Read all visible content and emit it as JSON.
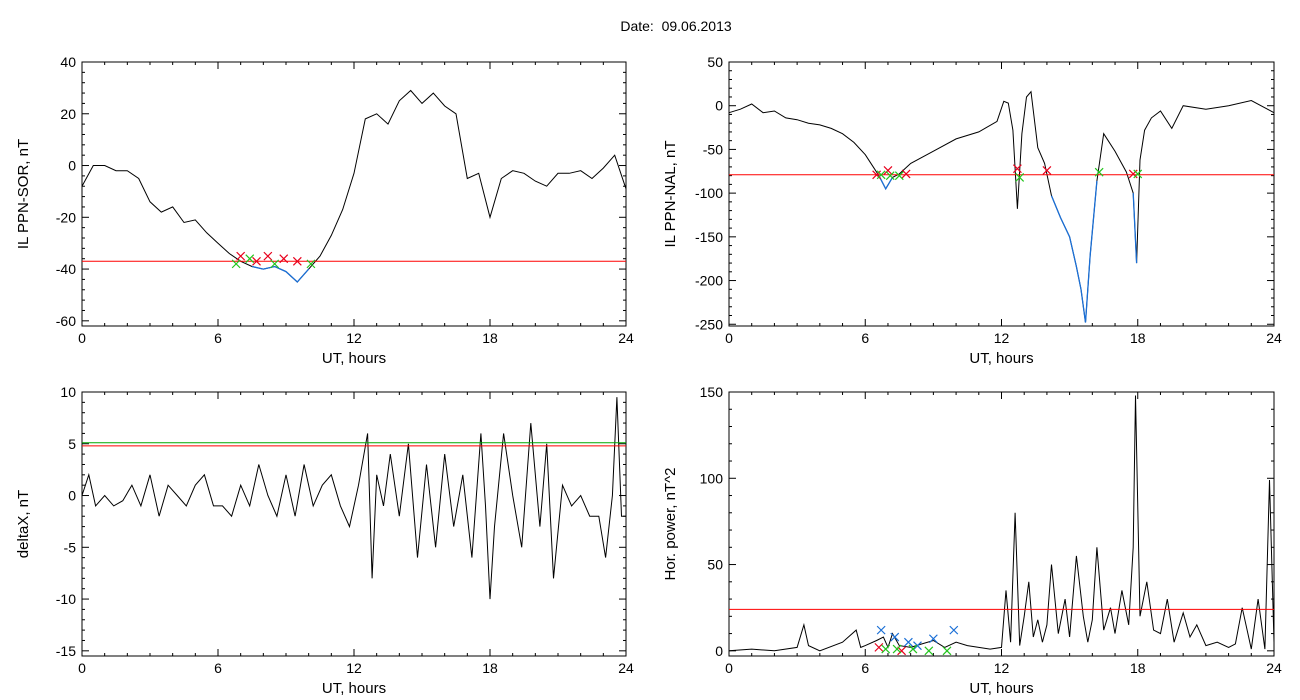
{
  "title": {
    "label": "Date:",
    "value": "09.06.2013"
  },
  "colors": {
    "trace": "#000000",
    "threshold": "#ff0000",
    "threshold_alt": "#00aa00",
    "highlight": "#1a6fd6",
    "marker_red": "#e8001c",
    "marker_green": "#22c41c",
    "marker_blue": "#1a6fd6"
  },
  "chart_data": [
    {
      "id": "sor",
      "type": "line",
      "xlabel": "UT, hours",
      "ylabel": "IL PPN-SOR, nT",
      "xlim": [
        0,
        24
      ],
      "ylim": [
        -62,
        40
      ],
      "xticks": [
        0,
        6,
        12,
        18,
        24
      ],
      "yticks": [
        -60,
        -40,
        -20,
        0,
        20,
        40
      ],
      "threshold": [
        -37
      ],
      "series": [
        {
          "x": [
            0,
            0.5,
            1,
            1.5,
            2,
            2.5,
            3,
            3.5,
            4,
            4.5,
            5,
            5.5,
            6,
            6.5,
            7,
            7.5,
            8,
            8.5,
            9,
            9.5,
            10,
            10.5,
            11,
            11.5,
            12,
            12.5,
            13,
            13.5,
            14,
            14.5,
            15,
            15.5,
            16,
            16.5,
            17,
            17.5,
            18,
            18.5,
            19,
            19.5,
            20,
            20.5,
            21,
            21.5,
            22,
            22.5,
            23,
            23.5,
            24
          ],
          "y": [
            -8,
            0,
            0,
            -2,
            -2,
            -5,
            -14,
            -18,
            -16,
            -22,
            -21,
            -26,
            -30,
            -34,
            -37,
            -39,
            -40,
            -39,
            -41,
            -45,
            -40,
            -35,
            -27,
            -17,
            -3,
            18,
            20,
            16,
            25,
            29,
            24,
            28,
            23,
            20,
            -5,
            -3,
            -20,
            -5,
            -2,
            -3,
            -6,
            -8,
            -3,
            -3,
            -2,
            -5,
            -1,
            4,
            -9
          ]
        }
      ],
      "markers": {
        "red": {
          "x": [
            7.0,
            7.7,
            8.2,
            8.9,
            9.5
          ],
          "y": [
            -35,
            -37,
            -35,
            -36,
            -37
          ]
        },
        "green": {
          "x": [
            6.8,
            7.4,
            8.5,
            10.1
          ],
          "y": [
            -38,
            -36,
            -38,
            -38
          ]
        }
      }
    },
    {
      "id": "nal",
      "type": "line",
      "xlabel": "UT, hours",
      "ylabel": "IL PPN-NAL, nT",
      "xlim": [
        0,
        24
      ],
      "ylim": [
        -252,
        50
      ],
      "xticks": [
        0,
        6,
        12,
        18,
        24
      ],
      "yticks": [
        -250,
        -200,
        -150,
        -100,
        -50,
        0,
        50
      ],
      "threshold": [
        -79
      ],
      "series": [
        {
          "x": [
            0,
            0.5,
            1,
            1.5,
            2,
            2.5,
            3,
            3.5,
            4,
            4.5,
            5,
            5.5,
            6,
            6.3,
            6.6,
            6.9,
            7.2,
            7.5,
            8,
            9,
            10,
            11,
            11.8,
            12.1,
            12.3,
            12.5,
            12.7,
            12.9,
            13.1,
            13.3,
            13.6,
            13.9,
            14.2,
            14.6,
            15,
            15.3,
            15.5,
            15.7,
            15.9,
            16.2,
            16.5,
            17,
            17.5,
            17.8,
            17.95,
            18.1,
            18.3,
            18.6,
            19,
            19.5,
            20,
            21,
            22,
            23,
            24
          ],
          "y": [
            -8,
            -4,
            2,
            -8,
            -6,
            -14,
            -16,
            -20,
            -22,
            -26,
            -32,
            -42,
            -56,
            -68,
            -80,
            -95,
            -82,
            -78,
            -66,
            -52,
            -38,
            -30,
            -18,
            5,
            3,
            -28,
            -118,
            -32,
            10,
            16,
            -48,
            -66,
            -103,
            -128,
            -150,
            -184,
            -210,
            -248,
            -172,
            -86,
            -32,
            -52,
            -76,
            -100,
            -180,
            -62,
            -28,
            -14,
            -6,
            -26,
            0,
            -4,
            0,
            6,
            -8
          ]
        }
      ],
      "markers": {
        "red": {
          "x": [
            6.5,
            7.0,
            7.8,
            12.7,
            14.0,
            17.8
          ],
          "y": [
            -79,
            -74,
            -78,
            -72,
            -74,
            -78
          ]
        },
        "green": {
          "x": [
            6.7,
            7.1,
            7.5,
            12.8,
            16.3,
            18.0
          ],
          "y": [
            -79,
            -80,
            -80,
            -82,
            -76,
            -78
          ]
        }
      }
    },
    {
      "id": "deltax",
      "type": "line",
      "xlabel": "UT, hours",
      "ylabel": "deltaX, nT",
      "xlim": [
        0,
        24
      ],
      "ylim": [
        -15.5,
        10
      ],
      "xticks": [
        0,
        6,
        12,
        18,
        24
      ],
      "yticks": [
        -15,
        -10,
        -5,
        0,
        5,
        10
      ],
      "threshold": [
        4.8,
        5.1
      ],
      "series": [
        {
          "x": [
            0,
            0.3,
            0.6,
            1,
            1.4,
            1.8,
            2.2,
            2.6,
            3,
            3.4,
            3.8,
            4.2,
            4.6,
            5,
            5.4,
            5.8,
            6.2,
            6.6,
            7,
            7.4,
            7.8,
            8.2,
            8.6,
            9,
            9.4,
            9.8,
            10.2,
            10.6,
            11,
            11.4,
            11.8,
            12.2,
            12.6,
            12.8,
            13,
            13.3,
            13.6,
            14,
            14.4,
            14.8,
            15.2,
            15.6,
            16,
            16.4,
            16.8,
            17.2,
            17.6,
            17.8,
            18,
            18.2,
            18.6,
            19,
            19.4,
            19.8,
            20.2,
            20.5,
            20.8,
            21.2,
            21.6,
            22,
            22.4,
            22.8,
            23.1,
            23.4,
            23.6,
            23.8,
            24
          ],
          "y": [
            0,
            2,
            -1,
            0,
            -1,
            -0.5,
            1,
            -1,
            2,
            -2,
            1,
            0,
            -1,
            1,
            2,
            -1,
            -1,
            -2,
            1,
            -1,
            3,
            0,
            -2,
            2,
            -2,
            3,
            -1,
            1,
            2,
            -1,
            -3,
            1,
            6,
            -8,
            2,
            -1,
            4,
            -2,
            5,
            -6,
            3,
            -5,
            4,
            -3,
            2,
            -6,
            6,
            -1,
            -10,
            -3,
            6,
            0,
            -5,
            7,
            -3,
            5,
            -8,
            1,
            -1,
            0,
            -2,
            -2,
            -6,
            0,
            9.5,
            -2,
            -2
          ]
        }
      ],
      "markers": {}
    },
    {
      "id": "power",
      "type": "line",
      "xlabel": "UT, hours",
      "ylabel": "Hor. power, nT^2",
      "xlim": [
        0,
        24
      ],
      "ylim": [
        -3,
        150
      ],
      "xticks": [
        0,
        6,
        12,
        18,
        24
      ],
      "yticks": [
        0,
        50,
        100,
        150
      ],
      "threshold": [
        24
      ],
      "series": [
        {
          "x": [
            0,
            1,
            2,
            3,
            3.3,
            3.5,
            4,
            5,
            5.6,
            5.8,
            6,
            6.5,
            6.8,
            7,
            7.2,
            7.5,
            8,
            8.5,
            9,
            9.5,
            10,
            10.5,
            11,
            11.5,
            12,
            12.2,
            12.4,
            12.6,
            12.8,
            13,
            13.2,
            13.4,
            13.6,
            13.8,
            14,
            14.2,
            14.5,
            14.8,
            15,
            15.3,
            15.6,
            15.8,
            16,
            16.2,
            16.5,
            16.8,
            17,
            17.3,
            17.6,
            17.8,
            17.9,
            18.1,
            18.4,
            18.7,
            19,
            19.3,
            19.6,
            20,
            20.3,
            20.6,
            21,
            21.5,
            22,
            22.3,
            22.6,
            23,
            23.3,
            23.6,
            23.8,
            24
          ],
          "y": [
            0,
            1,
            0,
            2,
            15,
            3,
            0,
            5,
            12,
            2,
            3,
            6,
            8,
            2,
            10,
            3,
            2,
            4,
            6,
            2,
            5,
            3,
            2,
            1,
            2,
            35,
            5,
            80,
            3,
            20,
            40,
            8,
            18,
            5,
            15,
            50,
            10,
            30,
            8,
            55,
            20,
            5,
            18,
            60,
            12,
            25,
            10,
            35,
            15,
            60,
            148,
            20,
            40,
            12,
            10,
            30,
            5,
            22,
            8,
            15,
            3,
            5,
            2,
            4,
            25,
            1,
            30,
            1,
            99,
            5
          ]
        }
      ],
      "markers": {
        "blue": {
          "x": [
            6.7,
            7.3,
            7.9,
            8.3,
            9.0,
            9.9
          ],
          "y": [
            12,
            8,
            5,
            3,
            7,
            12
          ]
        },
        "red": {
          "x": [
            6.6,
            7.6
          ],
          "y": [
            2,
            0
          ]
        },
        "green": {
          "x": [
            6.9,
            7.4,
            8.1,
            8.8,
            9.6
          ],
          "y": [
            1,
            1,
            1,
            0,
            0
          ]
        }
      }
    }
  ]
}
